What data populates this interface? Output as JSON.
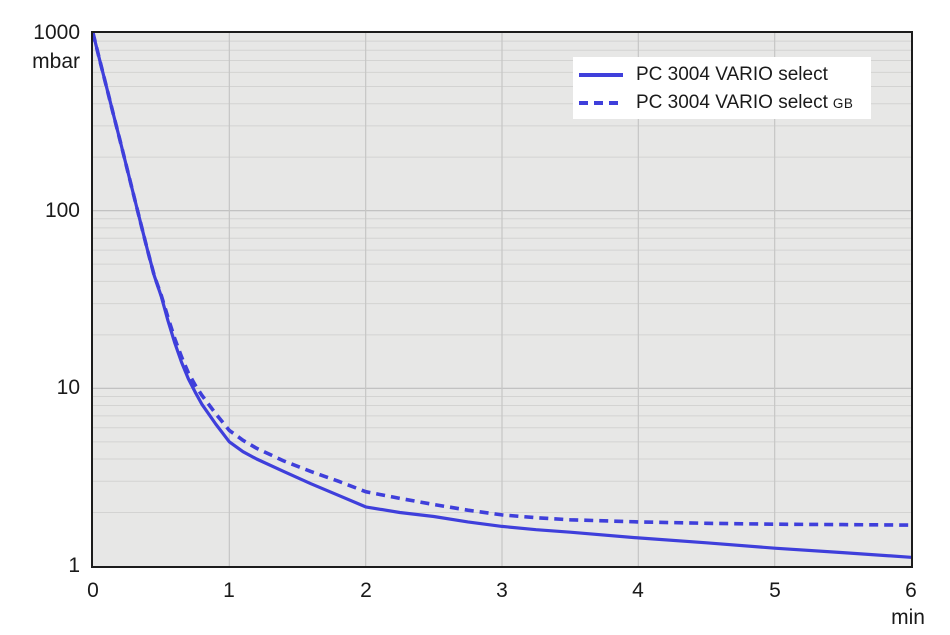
{
  "chart_data": {
    "type": "line",
    "x_axis": {
      "unit": "min",
      "min": 0,
      "max": 6,
      "ticks": [
        0,
        1,
        2,
        3,
        4,
        5,
        6
      ],
      "scale": "linear"
    },
    "y_axis": {
      "unit": "mbar",
      "min": 1,
      "max": 1000,
      "ticks": [
        1000,
        100,
        10,
        1
      ],
      "scale": "log"
    },
    "grid": {
      "vertical_at_minutes": [
        1,
        2,
        3,
        4,
        5
      ],
      "horizontal_log_minors": true
    },
    "legend_position": "top-right-inside",
    "colors": {
      "curve": "#3f3fdb",
      "plot_background": "#e7e7e6",
      "grid_minor": "#d3d3d2",
      "grid_major": "#bdbdbc",
      "grid_vertical": "#c6c6c5",
      "frame": "#1c1c1c",
      "text": "#1a1a1a",
      "legend_background": "#ffffff"
    },
    "series": [
      {
        "name": "PC 3004 VARIO select",
        "legend_label": "PC 3004 VARIO select",
        "legend_suffix": "",
        "style": "solid",
        "points": [
          [
            0,
            1000
          ],
          [
            0.05,
            700
          ],
          [
            0.1,
            495
          ],
          [
            0.15,
            348
          ],
          [
            0.2,
            245
          ],
          [
            0.25,
            172
          ],
          [
            0.3,
            121
          ],
          [
            0.35,
            85
          ],
          [
            0.4,
            60
          ],
          [
            0.45,
            43
          ],
          [
            0.5,
            33
          ],
          [
            0.55,
            24
          ],
          [
            0.6,
            18
          ],
          [
            0.65,
            14
          ],
          [
            0.7,
            11.3
          ],
          [
            0.75,
            9.5
          ],
          [
            0.8,
            8.1
          ],
          [
            0.9,
            6.3
          ],
          [
            1.0,
            5.0
          ],
          [
            1.1,
            4.4
          ],
          [
            1.2,
            4.0
          ],
          [
            1.4,
            3.4
          ],
          [
            1.6,
            2.9
          ],
          [
            1.8,
            2.5
          ],
          [
            2.0,
            2.15
          ],
          [
            2.25,
            2.0
          ],
          [
            2.5,
            1.9
          ],
          [
            2.75,
            1.77
          ],
          [
            3.0,
            1.67
          ],
          [
            3.25,
            1.6
          ],
          [
            3.5,
            1.55
          ],
          [
            4.0,
            1.44
          ],
          [
            4.5,
            1.35
          ],
          [
            5.0,
            1.26
          ],
          [
            5.5,
            1.19
          ],
          [
            6.0,
            1.12
          ]
        ]
      },
      {
        "name": "PC 3004 VARIO select GB",
        "legend_label": "PC 3004 VARIO select",
        "legend_suffix": "GB",
        "style": "dashed",
        "points": [
          [
            0,
            1000
          ],
          [
            0.05,
            700
          ],
          [
            0.1,
            495
          ],
          [
            0.15,
            348
          ],
          [
            0.2,
            245
          ],
          [
            0.25,
            172
          ],
          [
            0.3,
            121
          ],
          [
            0.35,
            85
          ],
          [
            0.4,
            60
          ],
          [
            0.45,
            43
          ],
          [
            0.5,
            33.5
          ],
          [
            0.55,
            25
          ],
          [
            0.6,
            19
          ],
          [
            0.65,
            15
          ],
          [
            0.7,
            12.2
          ],
          [
            0.75,
            10.4
          ],
          [
            0.8,
            9.1
          ],
          [
            0.9,
            7.2
          ],
          [
            1.0,
            5.8
          ],
          [
            1.1,
            5.1
          ],
          [
            1.2,
            4.6
          ],
          [
            1.4,
            3.9
          ],
          [
            1.6,
            3.4
          ],
          [
            1.8,
            3.0
          ],
          [
            2.0,
            2.62
          ],
          [
            2.25,
            2.4
          ],
          [
            2.5,
            2.22
          ],
          [
            2.75,
            2.06
          ],
          [
            3.0,
            1.94
          ],
          [
            3.25,
            1.87
          ],
          [
            3.5,
            1.82
          ],
          [
            4.0,
            1.77
          ],
          [
            4.5,
            1.74
          ],
          [
            5.0,
            1.72
          ],
          [
            5.5,
            1.71
          ],
          [
            6.0,
            1.7
          ]
        ]
      }
    ]
  }
}
